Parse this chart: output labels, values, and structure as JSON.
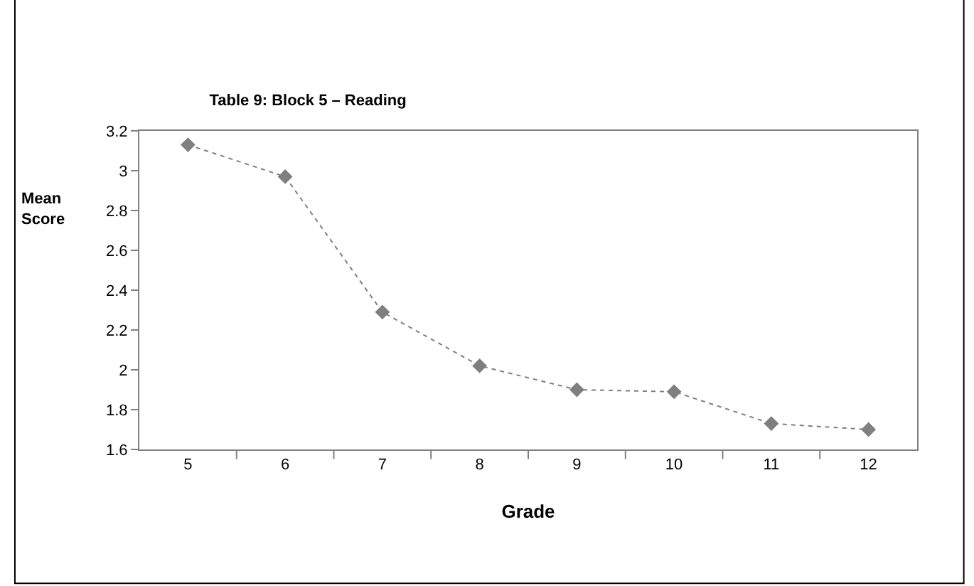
{
  "chart_data": {
    "type": "line",
    "title": "Table 9: Block 5 – Reading",
    "xlabel": "Grade",
    "ylabel": "Mean\nScore",
    "categories": [
      "5",
      "6",
      "7",
      "8",
      "9",
      "10",
      "11",
      "12"
    ],
    "series": [
      {
        "color": "#7f7f7f",
        "values": [
          3.13,
          2.97,
          2.29,
          2.02,
          1.9,
          1.89,
          1.73,
          1.7
        ]
      }
    ],
    "ylim": [
      1.6,
      3.2
    ],
    "yticks": [
      1.6,
      1.8,
      2,
      2.2,
      2.4,
      2.6,
      2.8,
      3,
      3.2
    ],
    "legend": false,
    "marker": "diamond",
    "line_style": "dotted"
  }
}
